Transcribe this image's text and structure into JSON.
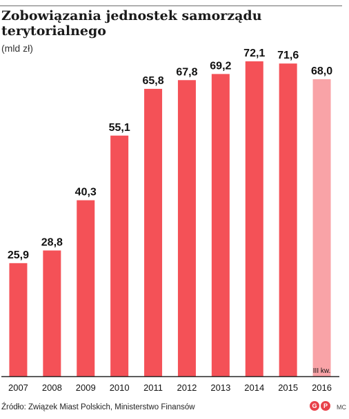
{
  "colors": {
    "bar": "#f45157",
    "bar_partial": "#f9a3a7",
    "text": "#111111",
    "axis": "#222222",
    "logo": "#e8424a"
  },
  "chart_data": {
    "type": "bar",
    "title": "Zobowiązania jednostek samorządu terytorialnego",
    "unit": "(mld zł)",
    "categories": [
      "2007",
      "2008",
      "2009",
      "2010",
      "2011",
      "2012",
      "2013",
      "2014",
      "2015",
      "2016"
    ],
    "values": [
      25.9,
      28.8,
      40.3,
      55.1,
      65.8,
      67.8,
      69.2,
      72.1,
      71.6,
      68.0
    ],
    "value_labels": [
      "25,9",
      "28,8",
      "40,3",
      "55,1",
      "65,8",
      "67,8",
      "69,2",
      "72,1",
      "71,6",
      "68,0"
    ],
    "annotation": {
      "category": "2016",
      "text": "III kw."
    },
    "ylim": [
      0,
      72.1
    ],
    "grid": false,
    "legend": "none"
  },
  "footer": {
    "source": "Źródło: Związek Miast Polskich, Ministerstwo Finansów",
    "logo_left": "G",
    "logo_right": "P",
    "author": "MC"
  }
}
